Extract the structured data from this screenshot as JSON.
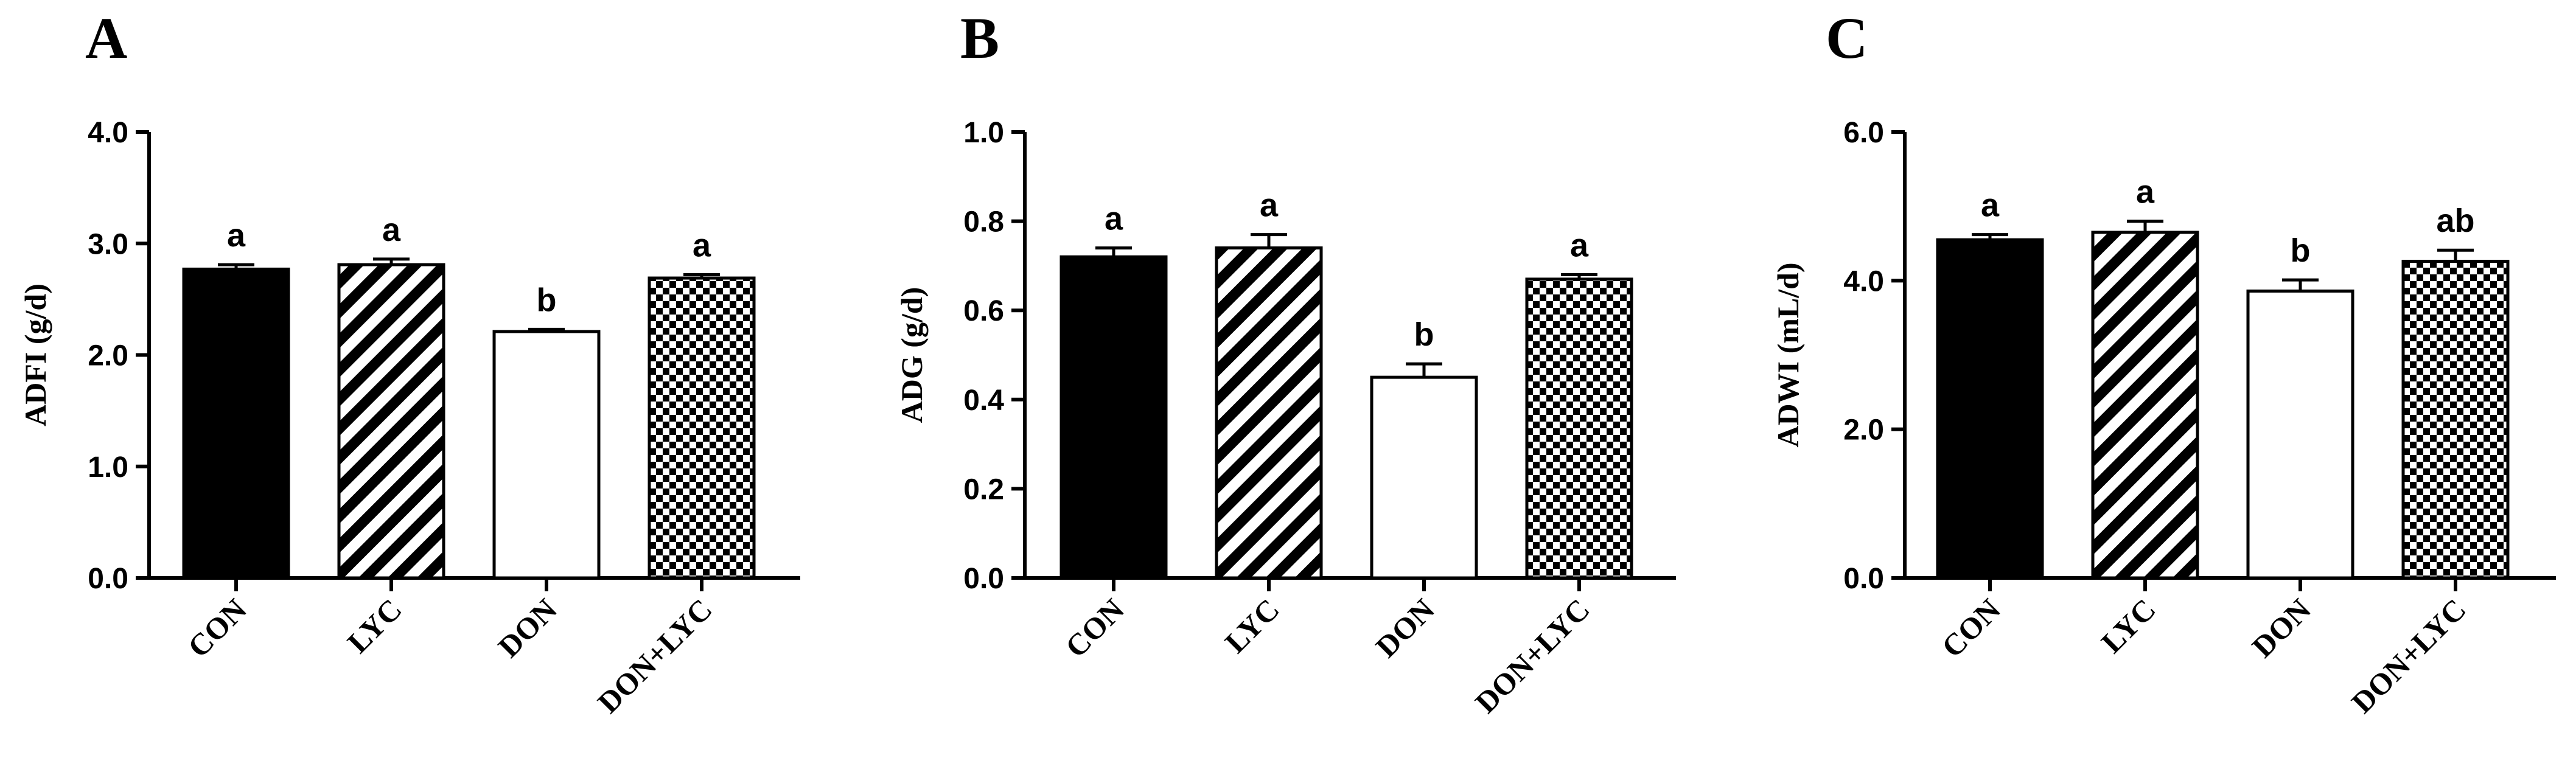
{
  "chart_data": [
    {
      "type": "bar",
      "panel_label": "A",
      "ylabel": "ADFI (g/d)",
      "ylim": [
        0,
        4.0
      ],
      "yticks": [
        "0.0",
        "1.0",
        "2.0",
        "3.0",
        "4.0"
      ],
      "categories": [
        "CON",
        "LYC",
        "DON",
        "DON+LYC"
      ],
      "values": [
        2.77,
        2.81,
        2.21,
        2.69
      ],
      "errors": [
        0.04,
        0.05,
        0.02,
        0.03
      ],
      "significance": [
        "a",
        "a",
        "b",
        "a"
      ]
    },
    {
      "type": "bar",
      "panel_label": "B",
      "ylabel": "ADG (g/d)",
      "ylim": [
        0,
        1.0
      ],
      "yticks": [
        "0.0",
        "0.2",
        "0.4",
        "0.6",
        "0.8",
        "1.0"
      ],
      "categories": [
        "CON",
        "LYC",
        "DON",
        "DON+LYC"
      ],
      "values": [
        0.72,
        0.74,
        0.45,
        0.67
      ],
      "errors": [
        0.02,
        0.03,
        0.03,
        0.01
      ],
      "significance": [
        "a",
        "a",
        "b",
        "a"
      ]
    },
    {
      "type": "bar",
      "panel_label": "C",
      "ylabel": "ADWI (mL/d)",
      "ylim": [
        0,
        6.0
      ],
      "yticks": [
        "0.0",
        "2.0",
        "4.0",
        "6.0"
      ],
      "categories": [
        "CON",
        "LYC",
        "DON",
        "DON+LYC"
      ],
      "values": [
        4.55,
        4.65,
        3.86,
        4.26
      ],
      "errors": [
        0.07,
        0.15,
        0.15,
        0.15
      ],
      "significance": [
        "a",
        "a",
        "b",
        "ab"
      ]
    }
  ],
  "bar_fills": [
    "solid-black",
    "diagonal-stripes",
    "white",
    "checkerboard"
  ],
  "colors": {
    "ink": "#000000",
    "background": "#ffffff"
  }
}
